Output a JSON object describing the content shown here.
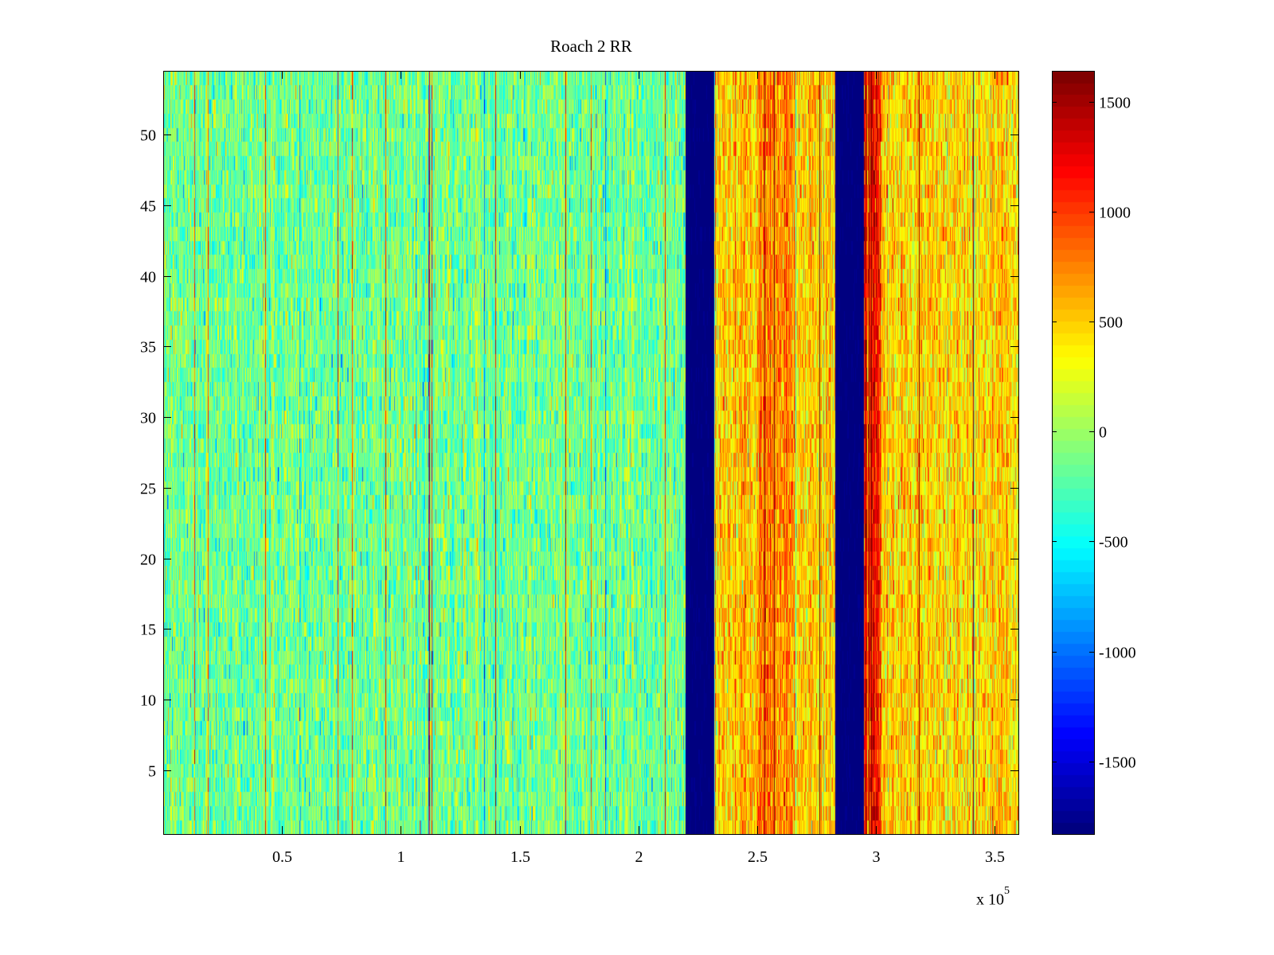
{
  "chart_data": {
    "type": "heatmap",
    "title": "Roach 2 RR",
    "xlabel": "",
    "ylabel": "",
    "x_range": [
      0,
      360000
    ],
    "y_range": [
      0.5,
      54.5
    ],
    "x_ticks": [
      0.5,
      1,
      1.5,
      2,
      2.5,
      3,
      3.5
    ],
    "x_tick_labels": [
      "0.5",
      "1",
      "1.5",
      "2",
      "2.5",
      "3",
      "3.5"
    ],
    "x_scale_label": "x 10",
    "x_scale_exponent": "5",
    "y_ticks": [
      5,
      10,
      15,
      20,
      25,
      30,
      35,
      40,
      45,
      50
    ],
    "y_tick_labels": [
      "5",
      "10",
      "15",
      "20",
      "25",
      "30",
      "35",
      "40",
      "45",
      "50"
    ],
    "colormap": "jet",
    "color_range": [
      -1830,
      1640
    ],
    "colorbar_ticks": [
      1500,
      1000,
      500,
      0,
      -500,
      -1000,
      -1500
    ],
    "colorbar_tick_labels": [
      "1500",
      "1000",
      "500",
      "0",
      "-500",
      "-1000",
      "-1500"
    ],
    "regions": [
      {
        "x_start": 0,
        "x_end": 220000,
        "mean_value": -150,
        "description": "mostly cyan-green-yellow noise"
      },
      {
        "x_start": 220000,
        "x_end": 232000,
        "mean_value": -1800,
        "description": "dark blue band"
      },
      {
        "x_start": 232000,
        "x_end": 283000,
        "mean_value": 500,
        "description": "orange-yellow noise"
      },
      {
        "x_start": 283000,
        "x_end": 295000,
        "mean_value": -1800,
        "description": "dark blue band"
      },
      {
        "x_start": 295000,
        "x_end": 360000,
        "mean_value": 450,
        "description": "red-orange-yellow noise"
      }
    ],
    "grid": false,
    "colorbar_position": "right"
  }
}
